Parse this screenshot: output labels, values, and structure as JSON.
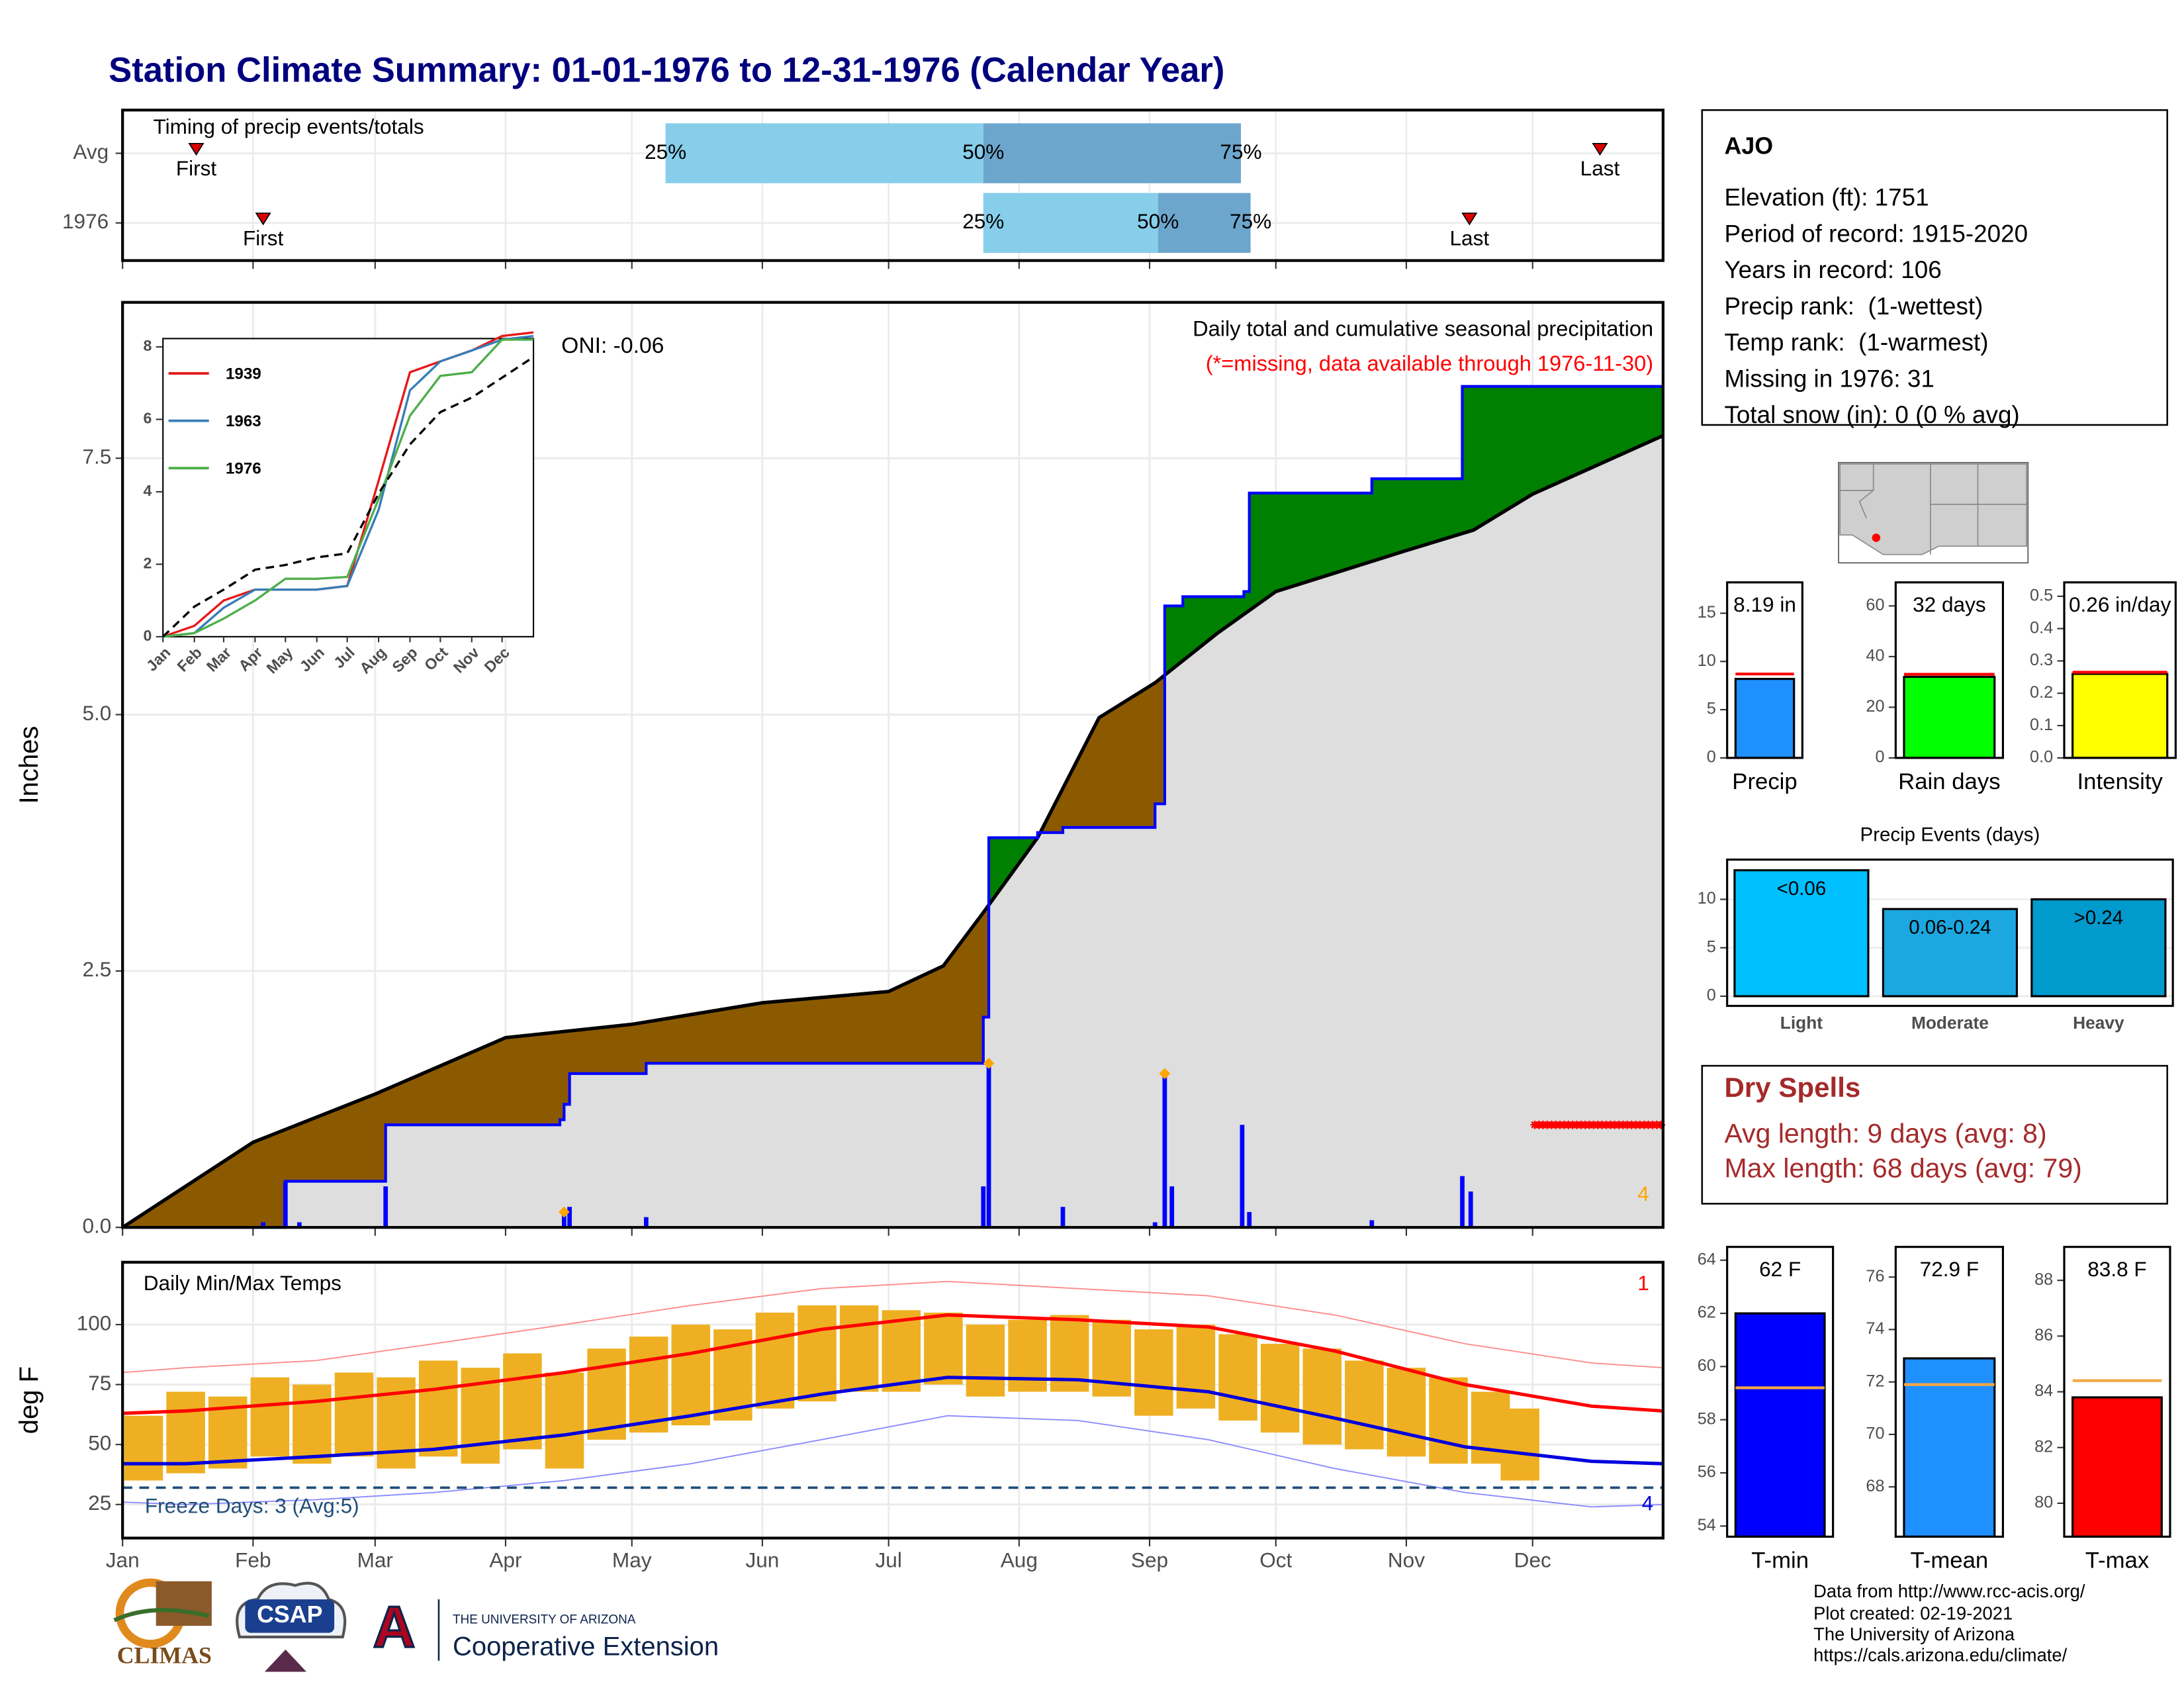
{
  "title": "Station Climate Summary: 01-01-1976 to 12-31-1976 (Calendar Year)",
  "info": {
    "station": "AJO",
    "lines": [
      "Elevation (ft): 1751",
      "Period of record: 1915-2020",
      "Years in record: 106",
      "Precip rank:  (1-wettest)",
      "Temp rank:  (1-warmest)",
      "Missing in 1976: 31",
      "Total snow (in): 0 (0 % avg)"
    ]
  },
  "dry_spells": {
    "title": "Dry Spells",
    "lines": [
      "Avg length: 9 days (avg: 8)",
      "Max length: 68 days (avg: 79)"
    ]
  },
  "footer": [
    "Data from http://www.rcc-acis.org/",
    "Plot created: 02-19-2021",
    "The University of Arizona",
    "https://cals.arizona.edu/climate/"
  ],
  "logos": {
    "climas": "CLIMAS",
    "csap": "CSAP",
    "university": "THE UNIVERSITY OF ARIZONA",
    "extension": "Cooperative Extension",
    "ua": "A"
  },
  "chart_data": [
    {
      "type": "timing",
      "title": "Timing of precip events/totals",
      "categories": [
        "Avg",
        "1976"
      ],
      "xlim": [
        0,
        366
      ],
      "xticks": [
        0,
        31,
        60,
        91,
        121,
        152,
        182,
        213,
        244,
        274,
        305,
        335
      ],
      "quartile_labels": [
        "25%",
        "50%",
        "75%"
      ],
      "quartiles": [
        [
          129,
          204.5,
          265.7
        ],
        [
          204.5,
          246,
          268
        ]
      ],
      "colors": [
        "#87ceeb",
        "#6ca6cd"
      ],
      "first_label": "First",
      "last_label": "Last",
      "first": [
        17.5,
        33.4
      ],
      "last": [
        351,
        320
      ],
      "marker_color": "#dd0000"
    },
    {
      "type": "area",
      "title": "Daily total and cumulative seasonal precipitation",
      "subtitle": "(*=missing, data available through 1976-11-30)",
      "annotation": "ONI: -0.06",
      "corner_note": "4",
      "y_label": "Inches",
      "xlim": [
        0,
        366
      ],
      "xticks": [
        0,
        31,
        60,
        91,
        121,
        152,
        182,
        213,
        244,
        274,
        305,
        335
      ],
      "ylim": [
        0,
        9.02
      ],
      "yticks": [
        {
          "value": 0,
          "label": "0.0"
        },
        2.5,
        {
          "value": 5,
          "label": "5.0"
        },
        7.5
      ],
      "grid": true,
      "average": {
        "color": "#000000",
        "fill": "#dedede",
        "x": [
          0,
          31,
          60,
          91,
          121,
          152,
          182,
          195,
          204.5,
          217.4,
          232,
          245.3,
          260,
          274,
          305,
          321,
          335,
          366
        ],
        "values": [
          0,
          0.83,
          1.3,
          1.85,
          1.98,
          2.19,
          2.3,
          2.55,
          3.07,
          3.8,
          4.97,
          5.31,
          5.79,
          6.2,
          6.6,
          6.8,
          7.15,
          7.72
        ]
      },
      "current": {
        "color": "#0000ff",
        "x": [
          0,
          38.7,
          62.5,
          103.9,
          104.9,
          106.2,
          124.4,
          204.5,
          205.8,
          217.4,
          223.4,
          245.3,
          247.6,
          251.9,
          266.4,
          267.7,
          296.8,
          318.3,
          366
        ],
        "values": [
          0,
          0.45,
          1.0,
          1.05,
          1.2,
          1.5,
          1.6,
          2.05,
          3.8,
          3.85,
          3.9,
          4.13,
          6.06,
          6.15,
          6.2,
          7.16,
          7.3,
          8.2,
          8.2
        ]
      },
      "above_color": "#008000",
      "below_color": "#8b5a00",
      "daily": {
        "color": "#0000ff",
        "x": [
          33.4,
          38.7,
          42,
          62.5,
          104.9,
          106.2,
          124.4,
          204.5,
          205.8,
          223.4,
          245.3,
          247.6,
          249.3,
          266,
          267.7,
          296.8,
          318.3,
          320.3
        ],
        "values": [
          0.05,
          0.45,
          0.05,
          0.4,
          0.15,
          0.2,
          0.1,
          0.4,
          1.6,
          0.2,
          0.05,
          1.5,
          0.4,
          1.0,
          0.15,
          0.07,
          0.5,
          0.35
        ]
      },
      "highlight": {
        "color": "#ffa500",
        "x": [
          104.9,
          205.8,
          247.6
        ],
        "values": [
          0.15,
          1.6,
          1.5
        ]
      },
      "missing": {
        "color": "#ff0000",
        "x": [
          335,
          366
        ],
        "value": 1.0
      }
    },
    {
      "type": "line",
      "xlim": [
        0,
        366
      ],
      "xticks": [
        {
          "value": 0,
          "label": "Jan"
        },
        {
          "value": 31,
          "label": "Feb"
        },
        {
          "value": 60,
          "label": "Mar"
        },
        {
          "value": 91,
          "label": "Apr"
        },
        {
          "value": 121,
          "label": "May"
        },
        {
          "value": 152,
          "label": "Jun"
        },
        {
          "value": 182,
          "label": "Jul"
        },
        {
          "value": 213,
          "label": "Aug"
        },
        {
          "value": 244,
          "label": "Sep"
        },
        {
          "value": 274,
          "label": "Oct"
        },
        {
          "value": 305,
          "label": "Nov"
        },
        {
          "value": 335,
          "label": "Dec"
        }
      ],
      "ylim": [
        0,
        8.23
      ],
      "yticks": [
        0,
        2,
        4,
        6,
        8
      ],
      "x": [
        0,
        31,
        60,
        91,
        121,
        152,
        182,
        213,
        244,
        274,
        305,
        335,
        366
      ],
      "series": [
        {
          "name": "1939",
          "color": "#e41a1c",
          "values": [
            0,
            0.3,
            1.0,
            1.3,
            1.3,
            1.3,
            1.4,
            4.3,
            7.3,
            7.6,
            7.9,
            8.3,
            8.4
          ]
        },
        {
          "name": "1963",
          "color": "#377eb8",
          "values": [
            0,
            0.1,
            0.8,
            1.3,
            1.3,
            1.3,
            1.4,
            3.5,
            6.8,
            7.6,
            7.9,
            8.2,
            8.3
          ]
        },
        {
          "name": "1976",
          "color": "#4daf4a",
          "values": [
            0,
            0.1,
            0.5,
            1.0,
            1.6,
            1.6,
            1.65,
            3.8,
            6.1,
            7.2,
            7.3,
            8.2,
            8.2
          ]
        }
      ],
      "average": {
        "color": "#000000",
        "values": [
          0,
          0.83,
          1.3,
          1.85,
          1.98,
          2.19,
          2.3,
          3.95,
          5.31,
          6.2,
          6.6,
          7.15,
          7.72
        ]
      }
    },
    {
      "type": "temperature",
      "title": "Daily Min/Max Temps",
      "y_label": "deg F",
      "top_note": "1",
      "bottom_note": "4",
      "freeze_label": "Freeze Days: 3 (Avg:5)",
      "freeze_line": 32,
      "xlim": [
        0,
        366
      ],
      "xticks": [
        {
          "value": 0,
          "label": "Jan"
        },
        {
          "value": 31,
          "label": "Feb"
        },
        {
          "value": 60,
          "label": "Mar"
        },
        {
          "value": 91,
          "label": "Apr"
        },
        {
          "value": 121,
          "label": "May"
        },
        {
          "value": 152,
          "label": "Jun"
        },
        {
          "value": 182,
          "label": "Jul"
        },
        {
          "value": 213,
          "label": "Aug"
        },
        {
          "value": 244,
          "label": "Sep"
        },
        {
          "value": 274,
          "label": "Oct"
        },
        {
          "value": 305,
          "label": "Nov"
        },
        {
          "value": 335,
          "label": "Dec"
        }
      ],
      "ylim": [
        11,
        126
      ],
      "yticks": [
        25,
        50,
        75,
        100
      ],
      "grid": true,
      "daily": {
        "color": "#eeb022",
        "x": [
          5,
          15,
          25,
          35,
          45,
          55,
          65,
          75,
          85,
          95,
          105,
          115,
          125,
          135,
          145,
          155,
          165,
          175,
          185,
          195,
          205,
          215,
          225,
          235,
          245,
          255,
          265,
          275,
          285,
          295,
          305,
          315,
          325,
          332
        ],
        "low": [
          35,
          38,
          40,
          45,
          42,
          45,
          40,
          45,
          42,
          48,
          40,
          52,
          55,
          58,
          60,
          65,
          68,
          72,
          72,
          75,
          70,
          72,
          72,
          70,
          62,
          65,
          60,
          55,
          50,
          48,
          45,
          42,
          42,
          35
        ],
        "high": [
          62,
          72,
          70,
          78,
          75,
          80,
          78,
          85,
          82,
          88,
          80,
          90,
          95,
          100,
          98,
          105,
          108,
          108,
          106,
          105,
          100,
          102,
          104,
          102,
          98,
          100,
          96,
          92,
          90,
          85,
          82,
          78,
          72,
          65
        ]
      },
      "line_x": [
        0,
        15,
        46,
        74,
        105,
        135,
        166,
        196,
        227,
        258,
        288,
        319,
        349,
        366
      ],
      "record_max": {
        "color": "#ff8c8c",
        "values": [
          80,
          82,
          85,
          92,
          100,
          108,
          115,
          118,
          115,
          112,
          104,
          92,
          84,
          82
        ]
      },
      "record_min": {
        "color": "#8c8cff",
        "values": [
          26,
          25,
          27,
          30,
          35,
          42,
          52,
          62,
          60,
          52,
          40,
          30,
          24,
          25
        ]
      },
      "normal_max": {
        "color": "#ff0000",
        "values": [
          63,
          64,
          68,
          73,
          80,
          88,
          98,
          104,
          102,
          99,
          89,
          75,
          66,
          64
        ]
      },
      "normal_min": {
        "color": "#0000dd",
        "values": [
          42,
          42,
          45,
          48,
          54,
          62,
          71,
          78,
          77,
          72,
          61,
          49,
          43,
          42
        ]
      },
      "freeze_color": "#1f4e79"
    },
    {
      "type": "bar",
      "categories": [
        "Precip"
      ],
      "values": [
        8.19
      ],
      "value_labels": [
        "8.19 in"
      ],
      "average": [
        8.7
      ],
      "average_color": "#ff0000",
      "colors": [
        "#1e90ff"
      ],
      "ylim": [
        0,
        18.2
      ],
      "yticks": [
        0,
        5,
        10,
        15
      ]
    },
    {
      "type": "bar",
      "categories": [
        "Rain days"
      ],
      "values": [
        32
      ],
      "value_labels": [
        "32 days"
      ],
      "average": [
        33
      ],
      "average_color": "#ff0000",
      "colors": [
        "#00ff00"
      ],
      "ylim": [
        0,
        69.3
      ],
      "yticks": [
        0,
        20,
        40,
        60
      ]
    },
    {
      "type": "bar",
      "categories": [
        "Intensity"
      ],
      "values": [
        0.26
      ],
      "value_labels": [
        "0.26 in/day"
      ],
      "average": [
        0.265
      ],
      "average_color": "#ff0000",
      "colors": [
        "#ffff00"
      ],
      "ylim": [
        0,
        0.543
      ],
      "yticks": [
        {
          "value": 0,
          "label": "0.0"
        },
        0.1,
        0.2,
        0.3,
        0.4,
        0.5
      ]
    },
    {
      "type": "bar",
      "title": "Precip Events (days)",
      "categories": [
        "Light",
        "Moderate",
        "Heavy"
      ],
      "values": [
        13,
        9,
        10
      ],
      "value_labels": [
        "<0.06",
        "0.06-0.24",
        ">0.24"
      ],
      "colors": [
        "#00bfff",
        "#1ca7e0",
        "#009acd"
      ],
      "ylim": [
        -1,
        14.1
      ],
      "yticks": [
        0,
        5,
        10
      ],
      "grid": true
    },
    {
      "type": "bar",
      "categories": [
        "T-min"
      ],
      "values": [
        62
      ],
      "value_labels": [
        "62 F"
      ],
      "average": [
        59.2
      ],
      "average_color": "#f4a742",
      "colors": [
        "#0000ff"
      ],
      "ylim": [
        53.6,
        64.5
      ],
      "yticks": [
        54,
        56,
        58,
        60,
        62,
        64
      ]
    },
    {
      "type": "bar",
      "categories": [
        "T-mean"
      ],
      "values": [
        72.9
      ],
      "value_labels": [
        "72.9 F"
      ],
      "average": [
        71.9
      ],
      "average_color": "#f4a742",
      "colors": [
        "#1e90ff"
      ],
      "ylim": [
        66.1,
        77.15
      ],
      "yticks": [
        68,
        70,
        72,
        74,
        76
      ]
    },
    {
      "type": "bar",
      "categories": [
        "T-max"
      ],
      "values": [
        83.8
      ],
      "value_labels": [
        "83.8 F"
      ],
      "average": [
        84.4
      ],
      "average_color": "#f4a742",
      "colors": [
        "#ff0000"
      ],
      "ylim": [
        78.8,
        89.2
      ],
      "yticks": [
        80,
        82,
        84,
        86,
        88
      ]
    }
  ]
}
